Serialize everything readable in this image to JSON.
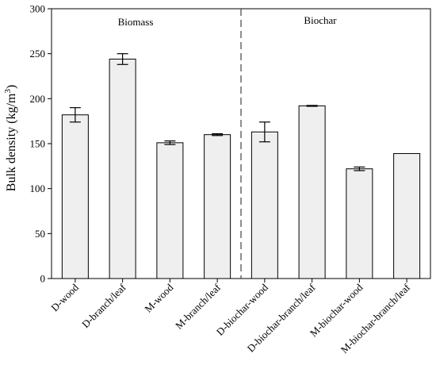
{
  "chart_data": {
    "type": "bar",
    "ylabel": "Bulk density (kg/m",
    "ylabel_sup": "3",
    "ylabel_suffix": ")",
    "xlabel": "",
    "ylim": [
      0,
      300
    ],
    "yticks": [
      0,
      50,
      100,
      150,
      200,
      250,
      300
    ],
    "categories": [
      "D-wood",
      "D-branch/leaf",
      "M-wood",
      "M-branch/leaf",
      "D-biochar-wood",
      "D-biochar-branch/leaf",
      "M-biochar-wood",
      "M-biochar-branch/leaf"
    ],
    "values": [
      182,
      244,
      151,
      160,
      163,
      192,
      122,
      139
    ],
    "errors": [
      8,
      6,
      2,
      1,
      11,
      0.5,
      2,
      0
    ],
    "bar_color": "#efefef",
    "edge_color": "#000000",
    "groups": [
      {
        "label": "Biomass",
        "first": 0,
        "last": 3
      },
      {
        "label": "Biochar",
        "first": 4,
        "last": 7
      }
    ],
    "divider_after_index": 3,
    "divider_style": "dashed",
    "grid": false,
    "legend": "none"
  }
}
